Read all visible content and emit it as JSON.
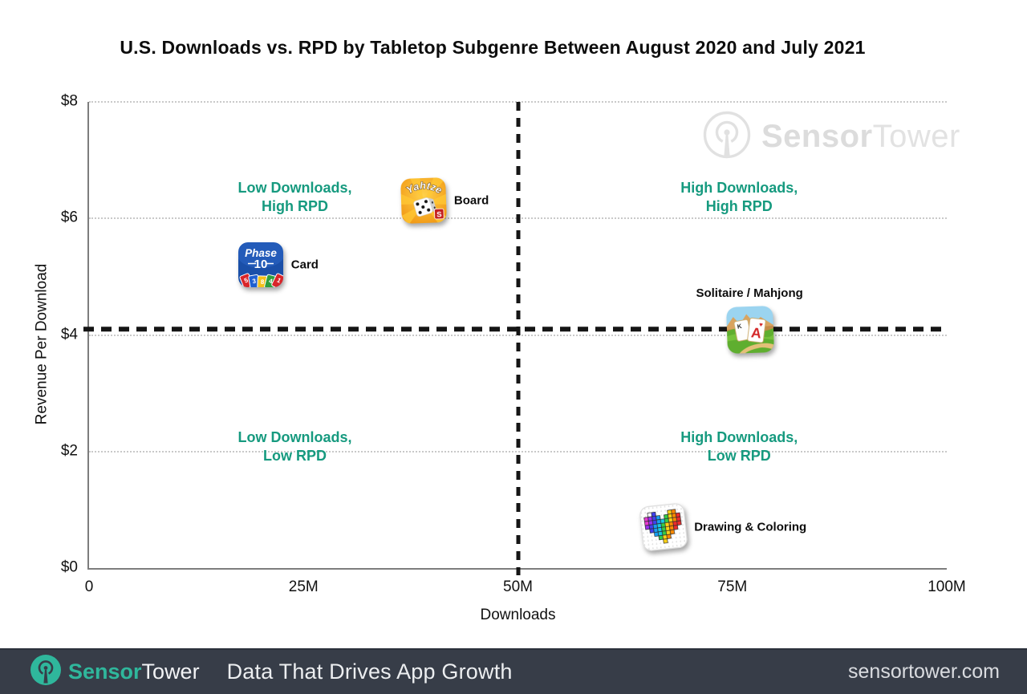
{
  "title": "U.S. Downloads vs. RPD by Tabletop Subgenre Between August 2020 and July 2021",
  "watermark": {
    "brand_bold": "Sensor",
    "brand_light": "Tower"
  },
  "chart_data": {
    "type": "scatter",
    "title": "U.S. Downloads vs. RPD by Tabletop Subgenre Between August 2020 and July 2021",
    "xlabel": "Downloads",
    "ylabel": "Revenue Per Download",
    "xlim_m": [
      0,
      100
    ],
    "ylim_usd": [
      0,
      8
    ],
    "xticks": [
      {
        "value_m": 0,
        "label": "0"
      },
      {
        "value_m": 25,
        "label": "25M"
      },
      {
        "value_m": 50,
        "label": "50M"
      },
      {
        "value_m": 75,
        "label": "75M"
      },
      {
        "value_m": 100,
        "label": "100M"
      }
    ],
    "yticks": [
      {
        "value_usd": 0,
        "label": "$0"
      },
      {
        "value_usd": 2,
        "label": "$2"
      },
      {
        "value_usd": 4,
        "label": "$4"
      },
      {
        "value_usd": 6,
        "label": "$6"
      },
      {
        "value_usd": 8,
        "label": "$8"
      }
    ],
    "grid": "dotted horizontal lines at $2 intervals",
    "legend_position": "none",
    "dividers": {
      "x_m": 50,
      "rpd_usd": 4.1,
      "style": "bold dashed black"
    },
    "quadrants": [
      {
        "pos": "top-left",
        "line1": "Low Downloads,",
        "line2": "High RPD"
      },
      {
        "pos": "top-right",
        "line1": "High Downloads,",
        "line2": "High RPD"
      },
      {
        "pos": "bottom-left",
        "line1": "Low Downloads,",
        "line2": "Low RPD"
      },
      {
        "pos": "bottom-right",
        "line1": "High Downloads,",
        "line2": "Low RPD"
      }
    ],
    "points": [
      {
        "label": "Board",
        "icon": "yahtzee-app-icon",
        "downloads_m": 39,
        "rpd_usd": 6.3,
        "label_pos": "right"
      },
      {
        "label": "Card",
        "icon": "phase-10-app-icon",
        "downloads_m": 20,
        "rpd_usd": 5.2,
        "label_pos": "right"
      },
      {
        "label": "Solitaire / Mahjong",
        "icon": "solitaire-grand-harvest-app-icon",
        "downloads_m": 77,
        "rpd_usd": 4.1,
        "label_pos": "above"
      },
      {
        "label": "Drawing & Coloring",
        "icon": "pixel-art-heart-app-icon",
        "downloads_m": 67,
        "rpd_usd": 0.7,
        "label_pos": "right"
      }
    ]
  },
  "colors": {
    "quadrant_label": "#169a7f",
    "divider": "#151515",
    "gridline": "#c9c9c9",
    "footer_bg": "#373d48",
    "brand_teal": "#2fb79c",
    "watermark_gray": "#e2e2e2"
  },
  "footer": {
    "brand_bold": "Sensor",
    "brand_light": "Tower",
    "tagline": "Data That Drives App Growth",
    "website": "sensortower.com"
  }
}
